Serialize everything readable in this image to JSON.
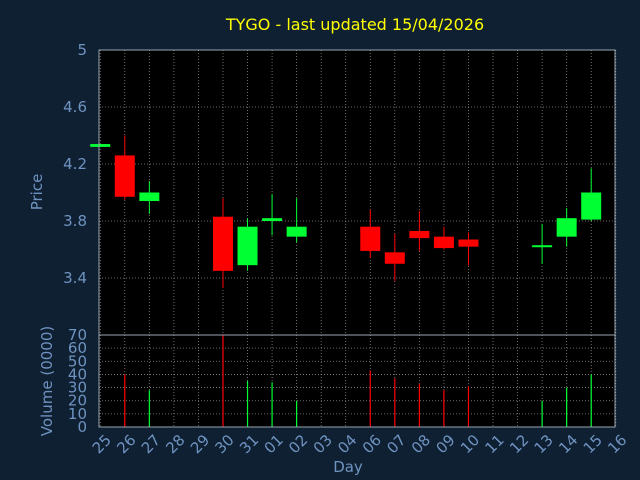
{
  "colors": {
    "background": "#0f2033",
    "plot_background": "#000000",
    "axis_text": "#6f93c0",
    "title_text": "#ffff00",
    "grid": "#8a8a8a",
    "up": "#00ff33",
    "down": "#ff0000"
  },
  "chart_data": [
    {
      "type": "candlestick",
      "title": "TYGO - last updated 15/04/2026",
      "ylabel": "Price",
      "xlabel": "",
      "ylim": [
        3.0,
        5.0
      ],
      "yticks": [
        "3.4",
        "3.8",
        "4.2",
        "4.6",
        "5"
      ],
      "grid": true,
      "candles": [
        {
          "x": "25",
          "open": 4.32,
          "high": 4.34,
          "low": 4.32,
          "close": 4.34
        },
        {
          "x": "26",
          "open": 4.26,
          "high": 4.4,
          "low": 3.95,
          "close": 3.97
        },
        {
          "x": "27",
          "open": 3.94,
          "high": 4.08,
          "low": 3.85,
          "close": 4.0
        },
        {
          "x": "30",
          "open": 3.83,
          "high": 3.96,
          "low": 3.33,
          "close": 3.45
        },
        {
          "x": "31",
          "open": 3.49,
          "high": 3.82,
          "low": 3.45,
          "close": 3.76
        },
        {
          "x": "01",
          "open": 3.8,
          "high": 3.99,
          "low": 3.7,
          "close": 3.82
        },
        {
          "x": "02",
          "open": 3.69,
          "high": 3.96,
          "low": 3.65,
          "close": 3.76
        },
        {
          "x": "06",
          "open": 3.76,
          "high": 3.88,
          "low": 3.54,
          "close": 3.59
        },
        {
          "x": "07",
          "open": 3.58,
          "high": 3.71,
          "low": 3.38,
          "close": 3.5
        },
        {
          "x": "08",
          "open": 3.73,
          "high": 3.87,
          "low": 3.59,
          "close": 3.68
        },
        {
          "x": "09",
          "open": 3.69,
          "high": 3.76,
          "low": 3.6,
          "close": 3.61
        },
        {
          "x": "10",
          "open": 3.67,
          "high": 3.72,
          "low": 3.49,
          "close": 3.62
        },
        {
          "x": "13",
          "open": 3.62,
          "high": 3.78,
          "low": 3.5,
          "close": 3.63
        },
        {
          "x": "14",
          "open": 3.69,
          "high": 3.89,
          "low": 3.62,
          "close": 3.82
        },
        {
          "x": "15",
          "open": 3.81,
          "high": 4.17,
          "low": 3.8,
          "close": 4.0
        }
      ]
    },
    {
      "type": "bar",
      "ylabel": "Volume (0000)",
      "xlabel": "Day",
      "ylim": [
        0,
        70
      ],
      "yticks": [
        "0",
        "10",
        "20",
        "30",
        "40",
        "50",
        "60",
        "70"
      ],
      "grid": true,
      "categories": [
        "25",
        "26",
        "27",
        "28",
        "29",
        "30",
        "31",
        "01",
        "02",
        "03",
        "04",
        "06",
        "07",
        "08",
        "09",
        "10",
        "11",
        "12",
        "13",
        "14",
        "15",
        "16"
      ],
      "bars": [
        {
          "x": "26",
          "value": 40,
          "dir": "down"
        },
        {
          "x": "27",
          "value": 28,
          "dir": "up"
        },
        {
          "x": "30",
          "value": 70,
          "dir": "down"
        },
        {
          "x": "31",
          "value": 35,
          "dir": "up"
        },
        {
          "x": "01",
          "value": 34,
          "dir": "up"
        },
        {
          "x": "02",
          "value": 20,
          "dir": "up"
        },
        {
          "x": "06",
          "value": 43,
          "dir": "down"
        },
        {
          "x": "07",
          "value": 37,
          "dir": "down"
        },
        {
          "x": "08",
          "value": 33,
          "dir": "down"
        },
        {
          "x": "09",
          "value": 28,
          "dir": "down"
        },
        {
          "x": "10",
          "value": 31,
          "dir": "down"
        },
        {
          "x": "13",
          "value": 20,
          "dir": "up"
        },
        {
          "x": "14",
          "value": 30,
          "dir": "up"
        },
        {
          "x": "15",
          "value": 40,
          "dir": "up"
        }
      ]
    }
  ]
}
